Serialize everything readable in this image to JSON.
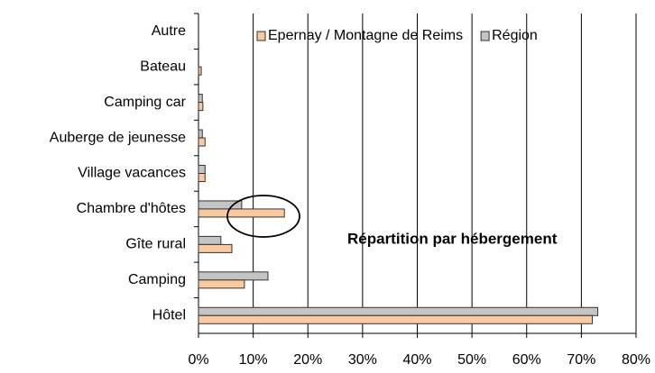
{
  "chart_data": {
    "type": "bar",
    "orientation": "horizontal",
    "categories": [
      "Autre",
      "Bateau",
      "Camping car",
      "Auberge de jeunesse",
      "Village vacances",
      "Chambre d'hôtes",
      "Gîte rural",
      "Camping",
      "Hôtel"
    ],
    "series": [
      {
        "name": "Région",
        "color": "#c4c4c4",
        "values": [
          0,
          0,
          0.7,
          0.7,
          1.2,
          7.9,
          4.1,
          12.7,
          73
        ]
      },
      {
        "name": "Epernay / Montagne de Reims",
        "color": "#fbc9a0",
        "values": [
          0,
          0.5,
          0.8,
          1.2,
          1.2,
          15.7,
          6.1,
          8.4,
          72
        ]
      }
    ],
    "xlim": [
      0,
      80
    ],
    "xticks": [
      {
        "value": 0,
        "label": "0%"
      },
      {
        "value": 10,
        "label": "10%"
      },
      {
        "value": 20,
        "label": "20%"
      },
      {
        "value": 30,
        "label": "30%"
      },
      {
        "value": 40,
        "label": "40%"
      },
      {
        "value": 50,
        "label": "50%"
      },
      {
        "value": 60,
        "label": "60%"
      },
      {
        "value": 70,
        "label": "70%"
      },
      {
        "value": 80,
        "label": "80%"
      }
    ],
    "grid": true,
    "legend": "top",
    "annotation": "Répartition par hébergement"
  }
}
